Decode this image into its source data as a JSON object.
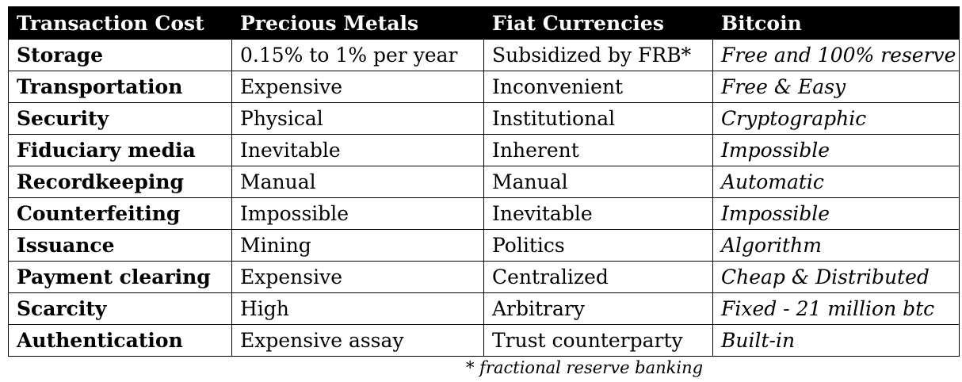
{
  "table": {
    "headers": [
      "Transaction Cost",
      "Precious Metals",
      "Fiat Currencies",
      "Bitcoin"
    ],
    "rows": [
      [
        "Storage",
        "0.15% to 1% per year",
        "Subsidized by FRB*",
        "Free and 100% reserve"
      ],
      [
        "Transportation",
        "Expensive",
        "Inconvenient",
        "Free & Easy"
      ],
      [
        "Security",
        "Physical",
        "Institutional",
        "Cryptographic"
      ],
      [
        "Fiduciary media",
        "Inevitable",
        "Inherent",
        "Impossible"
      ],
      [
        "Recordkeeping",
        "Manual",
        "Manual",
        "Automatic"
      ],
      [
        "Counterfeiting",
        "Impossible",
        "Inevitable",
        "Impossible"
      ],
      [
        "Issuance",
        "Mining",
        "Politics",
        "Algorithm"
      ],
      [
        "Payment clearing",
        "Expensive",
        "Centralized",
        "Cheap & Distributed"
      ],
      [
        "Scarcity",
        "High",
        "Arbitrary",
        "Fixed - 21 million btc"
      ],
      [
        "Authentication",
        "Expensive assay",
        "Trust counterparty",
        "Built-in"
      ]
    ]
  },
  "footnote": "* fractional reserve banking",
  "colors": {
    "header_bg": "#000000",
    "header_text": "#ffffff",
    "border": "#000000",
    "text": "#000000"
  }
}
